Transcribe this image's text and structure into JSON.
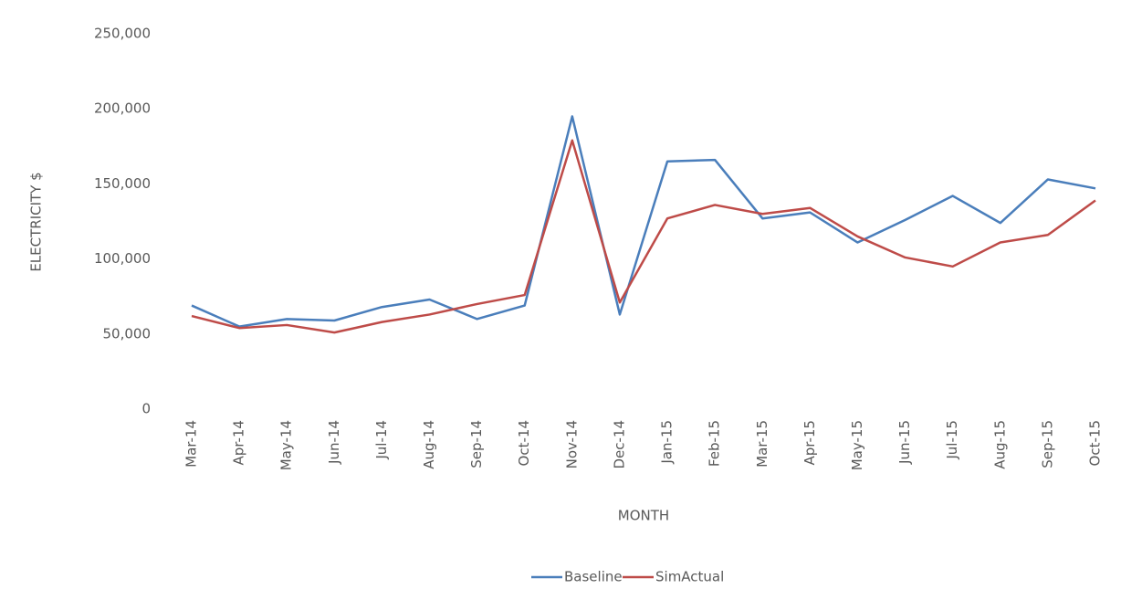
{
  "chart_data": {
    "type": "line",
    "x_label": "MONTH",
    "y_label": "ELECTRICITY $",
    "categories": [
      "Mar-14",
      "Apr-14",
      "May-14",
      "Jun-14",
      "Jul-14",
      "Aug-14",
      "Sep-14",
      "Oct-14",
      "Nov-14",
      "Dec-14",
      "Jan-15",
      "Feb-15",
      "Mar-15",
      "Apr-15",
      "May-15",
      "Jun-15",
      "Jul-15",
      "Aug-15",
      "Sep-15",
      "Oct-15"
    ],
    "series": [
      {
        "name": "Baseline",
        "color": "#4a7ebb",
        "values": [
          69000,
          55000,
          60000,
          59000,
          68000,
          73000,
          60000,
          69000,
          195000,
          63000,
          165000,
          166000,
          127000,
          131000,
          111000,
          126000,
          142000,
          124000,
          153000,
          147000
        ]
      },
      {
        "name": "SimActual",
        "color": "#be4b48",
        "values": [
          62000,
          54000,
          56000,
          51000,
          58000,
          63000,
          70000,
          76000,
          179000,
          71000,
          127000,
          136000,
          130000,
          134000,
          115000,
          101000,
          95000,
          111000,
          116000,
          139000
        ]
      }
    ],
    "ylim": [
      0,
      250000
    ],
    "yticks": [
      0,
      {
        "value": 50000,
        "label": "50,000"
      },
      {
        "value": 100000,
        "label": "100,000"
      },
      {
        "value": 150000,
        "label": "150,000"
      },
      {
        "value": 200000,
        "label": "200,000"
      },
      {
        "value": 250000,
        "label": "250,000"
      }
    ],
    "grid": false,
    "legend": "bottom"
  }
}
